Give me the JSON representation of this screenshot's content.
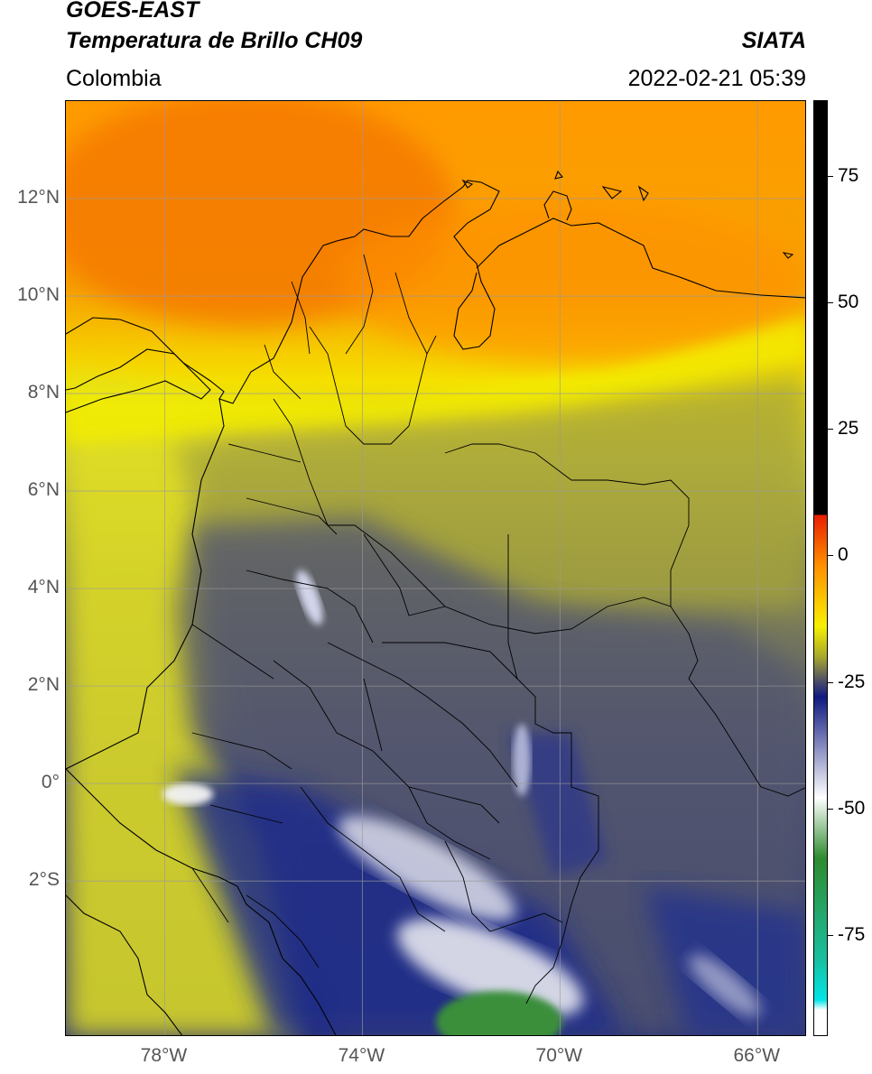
{
  "header": {
    "line1": "GOES-EAST",
    "line2": "Temperatura de Brillo CH09",
    "source": "SIATA",
    "region": "Colombia",
    "datetime": "2022-02-21 05:39"
  },
  "map": {
    "lon_range": [
      -80,
      -65
    ],
    "lat_range": [
      -5.2,
      14
    ],
    "lat_ticks": [
      {
        "lat": 12,
        "label": "12°N"
      },
      {
        "lat": 10,
        "label": "10°N"
      },
      {
        "lat": 8,
        "label": "8°N"
      },
      {
        "lat": 6,
        "label": "6°N"
      },
      {
        "lat": 4,
        "label": "4°N"
      },
      {
        "lat": 2,
        "label": "2°N"
      },
      {
        "lat": 0,
        "label": "0°"
      },
      {
        "lat": -2,
        "label": "2°S"
      }
    ],
    "lon_ticks": [
      {
        "lon": -78,
        "label": "78°W"
      },
      {
        "lon": -74,
        "label": "74°W"
      },
      {
        "lon": -70,
        "label": "70°W"
      },
      {
        "lon": -66,
        "label": "66°W"
      }
    ],
    "fill_colors": {
      "warm_orange": "#f77c00",
      "orange": "#ff9a00",
      "yellow": "#f2ee00",
      "olive": "#b5b52c",
      "olive_dark": "#8c8c4a",
      "slate": "#4e5470",
      "navy": "#1f2a8a",
      "white": "#f2f2f2",
      "green": "#3a8f3a"
    }
  },
  "colorbar": {
    "range": [
      -95,
      90
    ],
    "ticks": [
      {
        "value": 75,
        "label": "75"
      },
      {
        "value": 50,
        "label": "50"
      },
      {
        "value": 25,
        "label": "25"
      },
      {
        "value": 0,
        "label": "0"
      },
      {
        "value": -25,
        "label": "-25"
      },
      {
        "value": -50,
        "label": "-50"
      },
      {
        "value": -75,
        "label": "-75"
      }
    ],
    "colors": {
      "black": "#000000",
      "red": "#e81e00",
      "orange": "#ff9000",
      "yellow": "#f7f000",
      "olive": "#a8a82c",
      "slate": "#4a4c6a",
      "navy": "#101a80",
      "white": "#ffffff",
      "green": "#2e8b2e",
      "teal": "#1abfa0",
      "cyan": "#00e5e5"
    }
  }
}
